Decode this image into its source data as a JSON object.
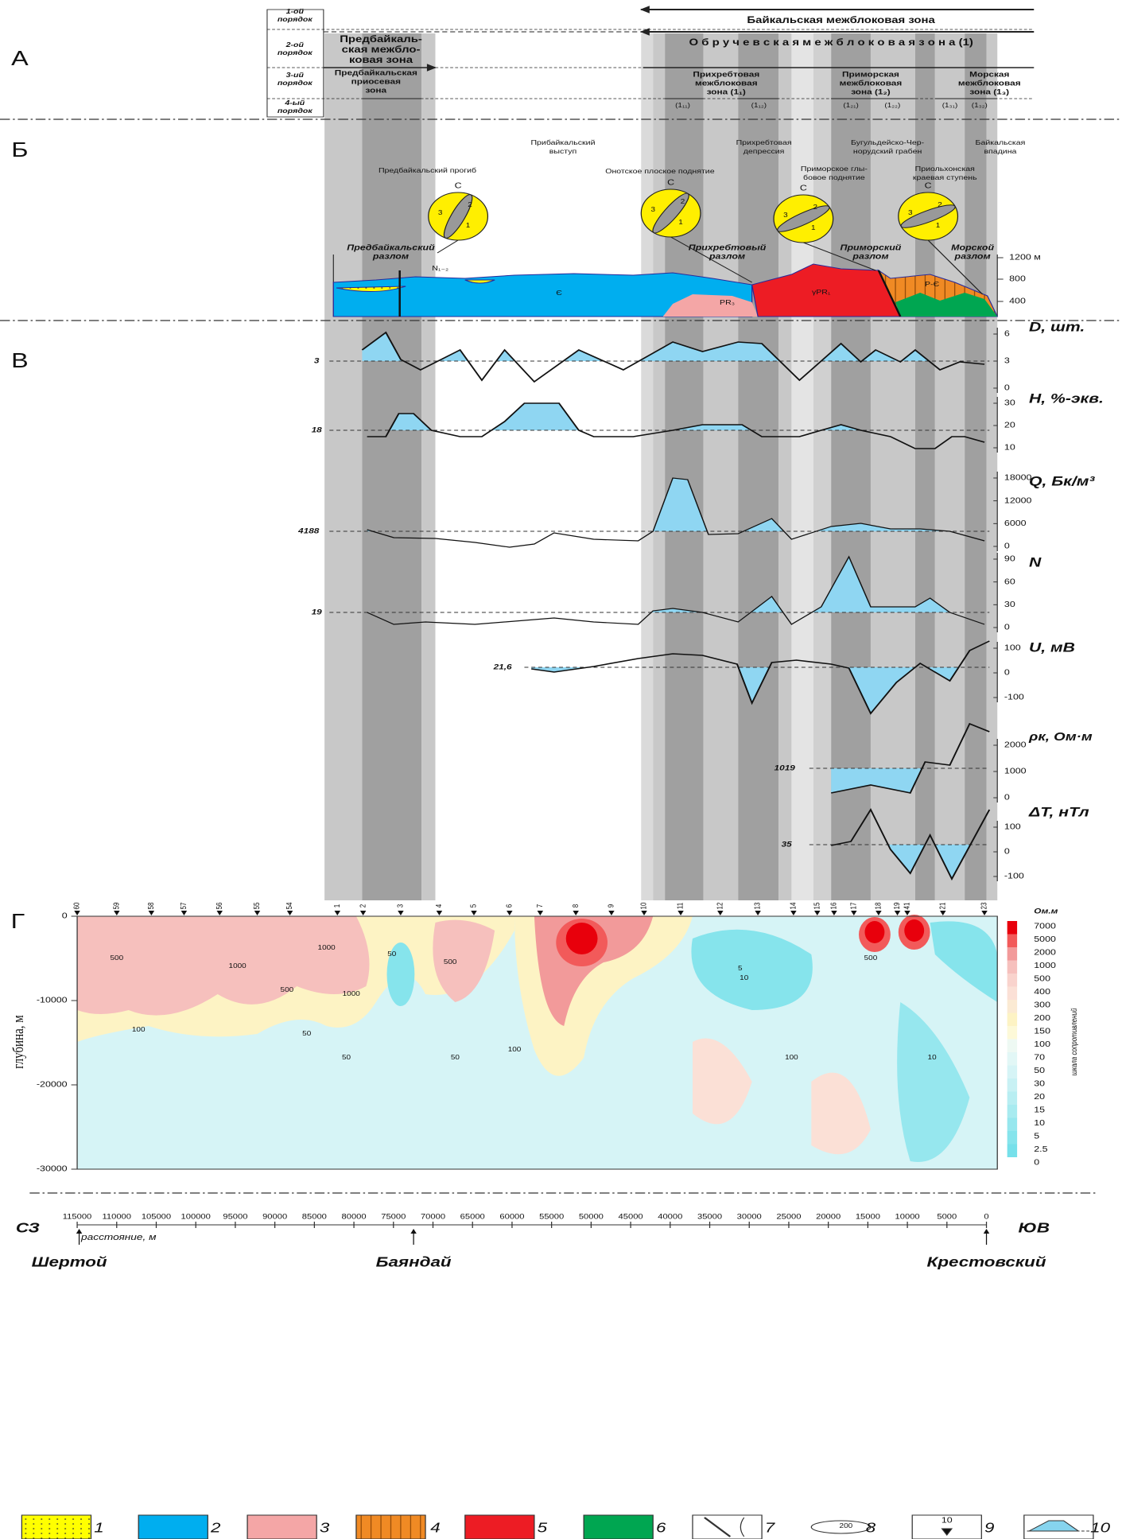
{
  "panel_labels": [
    "А",
    "Б",
    "В",
    "Г"
  ],
  "rank_labels": [
    [
      "1-ой",
      "порядок"
    ],
    [
      "2-ой",
      "порядок"
    ],
    [
      "3-ий",
      "порядок"
    ],
    [
      "4-ый",
      "порядок"
    ]
  ],
  "zones": {
    "order1": "Байкальская   межблоковая   зона",
    "order2_east": "О б р у ч е в с к а я   м е ж б л о к о в а я   з о н а (1)",
    "order2_west": [
      "Предбайкаль-",
      "ская межбло-",
      "ковая зона"
    ],
    "order3": [
      [
        "Предбайкальская",
        "приосевая",
        "зона"
      ],
      [
        "Прихребтовая",
        "межблоковая",
        "зона (1₁)"
      ],
      [
        "Приморская",
        "межблоковая",
        "зона (1₂)"
      ],
      [
        "Морская",
        "межблоковая",
        "зона (1₃)"
      ]
    ],
    "order4": [
      "(1₁₁)",
      "(1₁₂)",
      "(1₂₁)",
      "(1₂₂)",
      "(1₃₁)",
      "(1₃₂)"
    ]
  },
  "structures": [
    [
      "Предбайкальский прогиб"
    ],
    [
      "Прибайкальский",
      "выступ"
    ],
    [
      "Онотское плоское поднятие"
    ],
    [
      "Прихребтовая",
      "депрессия"
    ],
    [
      "Приморское глы-",
      "бовое поднятие"
    ],
    [
      "Бугульдейско-Чер-",
      "норудский грабен"
    ],
    [
      "Приольхонская",
      "краевая ступень"
    ],
    [
      "Байкальская",
      "впадина"
    ]
  ],
  "faults": [
    [
      "Предбайкальский",
      "разлом"
    ],
    [
      "Прихребтовый",
      "разлом"
    ],
    [
      "Приморский",
      "разлом"
    ],
    [
      "Морской",
      "разлом"
    ]
  ],
  "elevation_ticks": [
    "1200 м",
    "800",
    "400"
  ],
  "rock_labels": [
    "N₁₋₂",
    "Є",
    "PR₃",
    "γPR₁",
    "P-Є"
  ],
  "stereonet_labels": [
    "С",
    "1",
    "2",
    "3"
  ],
  "profiles": [
    {
      "name": "D, шт.",
      "ticks": [
        6,
        3,
        0
      ],
      "reference": 3
    },
    {
      "name": "H, %-экв.",
      "ticks": [
        30,
        20,
        10
      ],
      "reference": 18
    },
    {
      "name": "Q, Бк/м³",
      "ticks": [
        18000,
        12000,
        6000,
        0
      ],
      "reference": 4188
    },
    {
      "name": "N",
      "ticks": [
        90,
        60,
        30,
        0
      ],
      "reference": 19
    },
    {
      "name": "U, мВ",
      "ticks": [
        100,
        0,
        -100
      ],
      "reference": "21,6"
    },
    {
      "name": "ρк, Ом·м",
      "ticks": [
        2000,
        1000,
        0
      ],
      "reference": 1019
    },
    {
      "name": "ΔT, нТл",
      "ticks": [
        100,
        0,
        -100
      ],
      "reference": 35
    }
  ],
  "section": {
    "y_label": "глубина, м",
    "y_ticks": [
      0,
      -10000,
      -20000,
      -30000
    ],
    "stations": [
      60,
      59,
      58,
      57,
      56,
      55,
      54,
      1,
      2,
      3,
      4,
      5,
      6,
      7,
      8,
      9,
      10,
      11,
      12,
      13,
      14,
      15,
      16,
      17,
      18,
      19,
      41,
      21,
      23
    ],
    "contour_labels": [
      500,
      1000,
      500,
      1000,
      50,
      1000,
      500,
      100,
      50,
      50,
      100,
      5,
      10,
      100,
      50,
      500,
      10
    ],
    "scale_unit": "Ом.м",
    "scale_title": "шкала сопротивлений",
    "scale_values": [
      7000,
      5000,
      2000,
      1000,
      500,
      400,
      300,
      200,
      150,
      100,
      70,
      50,
      30,
      20,
      15,
      10,
      5,
      2.5,
      0
    ],
    "scale_colors": [
      "#e8000c",
      "#f25a5a",
      "#f29a9a",
      "#f6c0bd",
      "#f9d3cd",
      "#fbe0d6",
      "#fbead3",
      "#fdf3c4",
      "#fdf9d8",
      "#eef9f3",
      "#e2f7f6",
      "#d6f4f6",
      "#c8f1f4",
      "#b8eef2",
      "#a8ebf0",
      "#96e7ee",
      "#86e4ec",
      "#76e0ea"
    ]
  },
  "distance": {
    "ticks": [
      115000,
      110000,
      105000,
      100000,
      95000,
      90000,
      85000,
      80000,
      75000,
      70000,
      65000,
      60000,
      55000,
      50000,
      45000,
      40000,
      35000,
      30000,
      25000,
      20000,
      15000,
      10000,
      5000,
      0
    ],
    "label": "расстояние, м",
    "left": "СЗ",
    "right": "ЮВ",
    "places": [
      "Шертой",
      "Баяндай",
      "Крестовский"
    ]
  },
  "legend": {
    "items": [
      1,
      2,
      3,
      4,
      5,
      6,
      7,
      8,
      9,
      10
    ],
    "symbol_8": 200,
    "symbol_9": 10
  }
}
